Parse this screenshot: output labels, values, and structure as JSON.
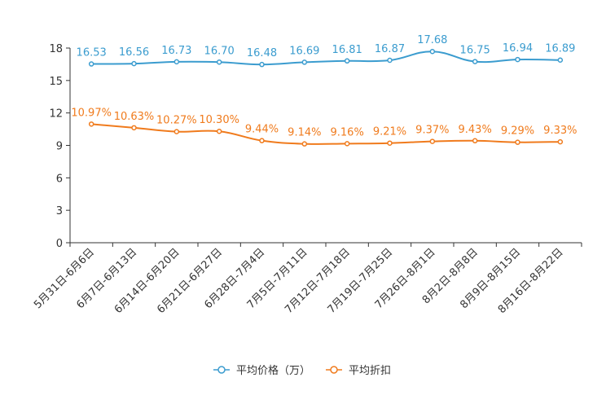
{
  "chart_data": {
    "type": "line",
    "categories": [
      "5月31日-6月6日",
      "6月7日-6月13日",
      "6月14日-6月20日",
      "6月21日-6月27日",
      "6月28日-7月4日",
      "7月5日-7月11日",
      "7月12日-7月18日",
      "7月19日-7月25日",
      "7月26日-8月1日",
      "8月2日-8月8日",
      "8月9日-8月15日",
      "8月16日-8月22日"
    ],
    "series": [
      {
        "name": "平均价格（万）",
        "color": "#3b9ccf",
        "values": [
          16.53,
          16.56,
          16.73,
          16.7,
          16.48,
          16.69,
          16.81,
          16.87,
          17.68,
          16.75,
          16.94,
          16.89
        ],
        "labels": [
          "16.53",
          "16.56",
          "16.73",
          "16.70",
          "16.48",
          "16.69",
          "16.81",
          "16.87",
          "17.68",
          "16.75",
          "16.94",
          "16.89"
        ]
      },
      {
        "name": "平均折扣",
        "color": "#f07b1d",
        "values": [
          10.97,
          10.63,
          10.27,
          10.3,
          9.44,
          9.14,
          9.16,
          9.21,
          9.37,
          9.43,
          9.29,
          9.33
        ],
        "labels": [
          "10.97%",
          "10.63%",
          "10.27%",
          "10.30%",
          "9.44%",
          "9.14%",
          "9.16%",
          "9.21%",
          "9.37%",
          "9.43%",
          "9.29%",
          "9.33%"
        ]
      }
    ],
    "yticks": [
      "0",
      "3",
      "6",
      "9",
      "12",
      "15",
      "18"
    ],
    "ylim": [
      0,
      18
    ],
    "legend_position": "bottom-center"
  }
}
